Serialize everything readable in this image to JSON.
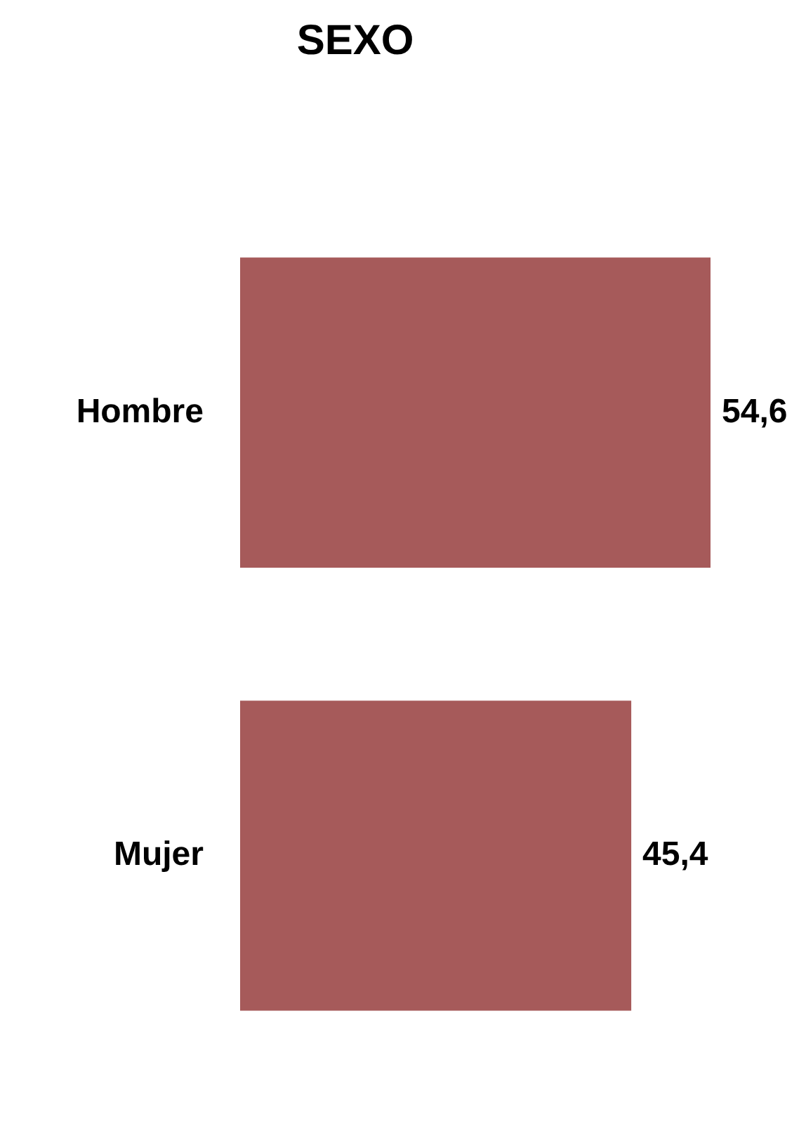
{
  "chart_data": {
    "type": "bar",
    "orientation": "horizontal",
    "title": "SEXO",
    "categories": [
      "Hombre",
      "Mujer"
    ],
    "values": [
      54.6,
      45.4
    ],
    "value_labels": [
      "54,6",
      "45,4"
    ],
    "color": "#a65a5a",
    "grid": false,
    "legend": false,
    "tick_labels": "y"
  }
}
